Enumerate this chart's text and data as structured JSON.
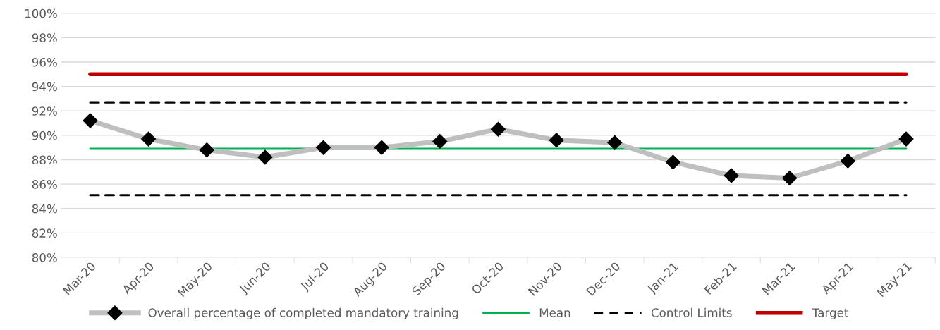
{
  "chart_data": {
    "type": "line",
    "categories": [
      "Mar-20",
      "Apr-20",
      "May-20",
      "Jun-20",
      "Jul-20",
      "Aug-20",
      "Sep-20",
      "Oct-20",
      "Nov-20",
      "Dec-20",
      "Jan-21",
      "Feb-21",
      "Mar-21",
      "Apr-21",
      "May-21"
    ],
    "series": [
      {
        "name": "Overall percentage of completed mandatory training",
        "color": "#bfbfbf",
        "values": [
          91.2,
          89.7,
          88.8,
          88.2,
          89.0,
          89.0,
          89.5,
          90.5,
          89.6,
          89.4,
          87.8,
          86.7,
          86.5,
          87.9,
          89.7
        ]
      }
    ],
    "marker": "diamond",
    "ylim": [
      80,
      100
    ],
    "yticks": [
      {
        "value": 80,
        "label": "80%"
      },
      {
        "value": 82,
        "label": "82%"
      },
      {
        "value": 84,
        "label": "84%"
      },
      {
        "value": 86,
        "label": "86%"
      },
      {
        "value": 88,
        "label": "88%"
      },
      {
        "value": 90,
        "label": "90%"
      },
      {
        "value": 92,
        "label": "92%"
      },
      {
        "value": 94,
        "label": "94%"
      },
      {
        "value": 96,
        "label": "96%"
      },
      {
        "value": 98,
        "label": "98%"
      },
      {
        "value": 100,
        "label": "100%"
      }
    ],
    "grid": "y",
    "ref_lines": [
      {
        "axis": "y",
        "value": 88.9,
        "label": "Mean",
        "color": "#00b050",
        "line_style": "solid"
      },
      {
        "axis": "y",
        "value": 92.7,
        "label": "Control Limits",
        "color": "#000000",
        "line_style": "dashed"
      },
      {
        "axis": "y",
        "value": 85.1,
        "label": null,
        "color": "#000000",
        "line_style": "dashed"
      },
      {
        "axis": "y",
        "value": 95,
        "label": "Target",
        "color": "#c00000",
        "line_style": "solid"
      }
    ],
    "legend": "bottom"
  }
}
